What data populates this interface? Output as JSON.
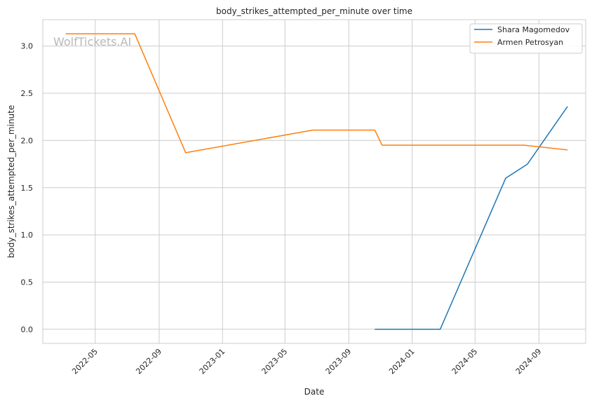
{
  "chart_data": {
    "type": "line",
    "title": "body_strikes_attempted_per_minute over time",
    "xlabel": "Date",
    "ylabel": "body_strikes_attempted_per_minute",
    "watermark": "WolfTickets.AI",
    "xlim": [
      "2022-01-20",
      "2024-11-30"
    ],
    "ylim": [
      -0.15,
      3.28
    ],
    "x_ticks": [
      "2022-05",
      "2022-09",
      "2023-01",
      "2023-05",
      "2023-09",
      "2024-01",
      "2024-05",
      "2024-09"
    ],
    "y_ticks": [
      "0.0",
      "0.5",
      "1.0",
      "1.5",
      "2.0",
      "2.5",
      "3.0"
    ],
    "grid": true,
    "legend_position": "top-right",
    "series": [
      {
        "name": "Shara Magomedov",
        "color": "#1f77b4",
        "x": [
          "2023-10-21",
          "2024-02-24",
          "2024-06-29",
          "2024-08-10",
          "2024-10-26"
        ],
        "y": [
          0.0,
          0.0,
          1.6,
          1.75,
          2.36
        ]
      },
      {
        "name": "Armen Petrosyan",
        "color": "#ff7f0e",
        "x": [
          "2022-03-05",
          "2022-07-16",
          "2022-10-22",
          "2023-06-24",
          "2023-10-21",
          "2023-11-04",
          "2024-08-03",
          "2024-10-26"
        ],
        "y": [
          3.13,
          3.13,
          1.87,
          2.11,
          2.11,
          1.95,
          1.95,
          1.9
        ]
      }
    ]
  }
}
